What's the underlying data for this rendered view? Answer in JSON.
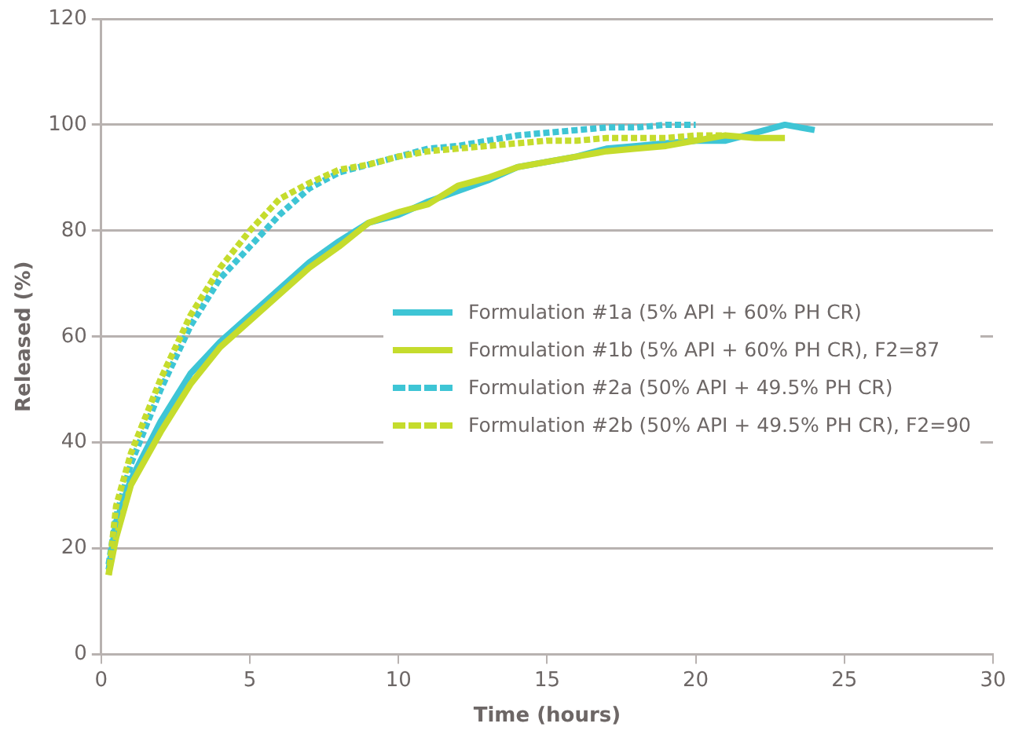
{
  "chart_data": {
    "type": "line",
    "xlabel": "Time (hours)",
    "ylabel": "Released (%)",
    "xlim": [
      0,
      30
    ],
    "xticks": [
      0,
      5,
      10,
      15,
      20,
      25,
      30
    ],
    "ylim": [
      0,
      120
    ],
    "yticks": [
      0,
      20,
      40,
      60,
      80,
      100,
      120
    ],
    "grid": "y",
    "legend": "right",
    "marker": "none",
    "series": [
      {
        "name": "Formulation #1a (5% API + 60% PH CR)",
        "color": "#3ec5d5",
        "line_style": "solid",
        "x": [
          0.25,
          0.5,
          1,
          2,
          3,
          4,
          5,
          6,
          7,
          8,
          9,
          10,
          11,
          12,
          13,
          14,
          15,
          16,
          17,
          18,
          19,
          20,
          21,
          22,
          23,
          24
        ],
        "values": [
          16,
          25,
          33,
          44,
          53,
          59,
          64,
          69,
          74,
          78,
          81.5,
          83,
          85.5,
          87.5,
          89.5,
          92,
          93,
          94,
          95.5,
          96,
          96.5,
          97,
          97,
          98.5,
          100,
          99
        ]
      },
      {
        "name": "Formulation #1b (5% API + 60% PH CR), F2=87",
        "color": "#c5dc2d",
        "line_style": "solid",
        "x": [
          0.25,
          0.5,
          1,
          2,
          3,
          4,
          5,
          6,
          7,
          8,
          9,
          10,
          11,
          12,
          13,
          14,
          15,
          16,
          17,
          18,
          19,
          20,
          21,
          22,
          23
        ],
        "values": [
          15,
          22,
          32,
          42,
          51,
          58,
          63,
          68,
          73,
          77,
          81.5,
          83.5,
          85,
          88.5,
          90,
          92,
          93,
          94,
          95,
          95.5,
          96,
          97,
          98,
          97.5,
          97.5
        ]
      },
      {
        "name": "Formulation #2a (50% API + 49.5% PH CR)",
        "color": "#3ec5d5",
        "line_style": "dashed",
        "x": [
          0.25,
          0.5,
          1,
          2,
          3,
          4,
          5,
          6,
          7,
          8,
          9,
          10,
          11,
          12,
          13,
          14,
          15,
          16,
          17,
          18,
          19,
          20
        ],
        "values": [
          17,
          26,
          36,
          50,
          62,
          71,
          77,
          83,
          88,
          91,
          92.5,
          94,
          95.5,
          96,
          97,
          98,
          98.5,
          99,
          99.5,
          99.5,
          100,
          100
        ]
      },
      {
        "name": "Formulation #2b (50% API + 49.5% PH CR), F2=90",
        "color": "#c5dc2d",
        "line_style": "dashed",
        "x": [
          0.25,
          0.5,
          1,
          2,
          3,
          4,
          5,
          6,
          7,
          8,
          9,
          10,
          11,
          12,
          13,
          14,
          15,
          16,
          17,
          18,
          19,
          20,
          21
        ],
        "values": [
          15,
          28,
          38,
          52,
          64,
          73,
          80,
          86,
          89,
          91.5,
          92.5,
          94,
          95,
          95.5,
          96,
          96.5,
          97,
          97,
          97.5,
          97.5,
          97.5,
          98,
          98
        ]
      }
    ]
  }
}
